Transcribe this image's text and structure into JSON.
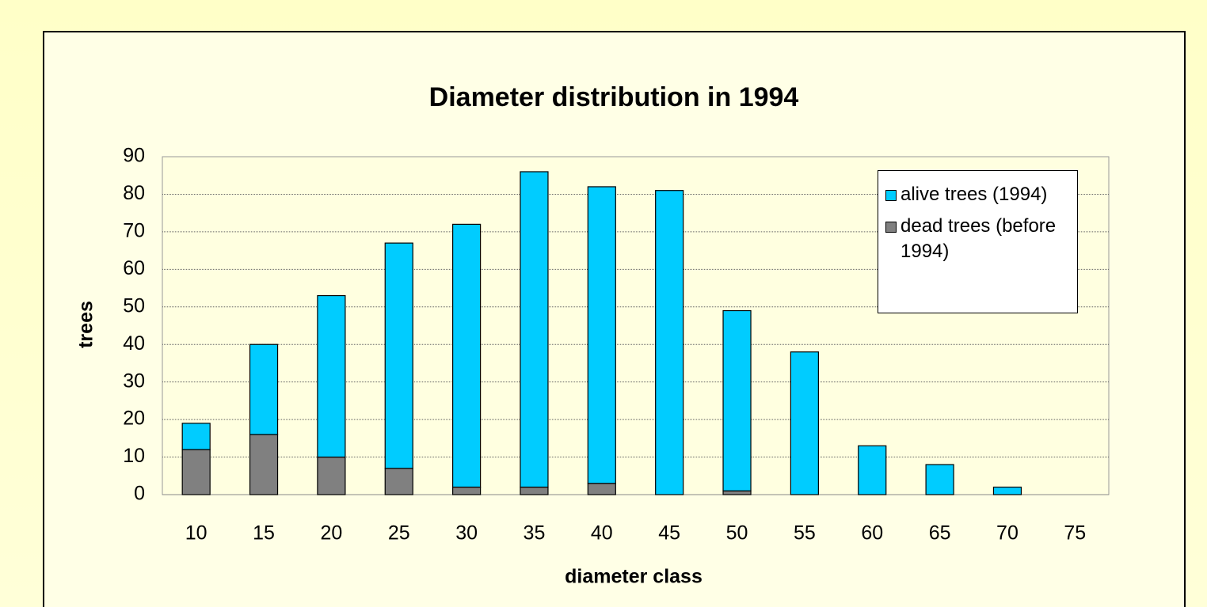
{
  "chart_data": {
    "type": "stacked_bar",
    "title": "Diameter distribution in 1994",
    "x_label": "diameter class",
    "y_label": "trees",
    "categories": [
      "10",
      "15",
      "20",
      "25",
      "30",
      "35",
      "40",
      "45",
      "50",
      "55",
      "60",
      "65",
      "70",
      "75"
    ],
    "series": [
      {
        "name": "alive trees (1994)",
        "color": "#00ccff",
        "values": [
          7,
          24,
          43,
          60,
          70,
          84,
          79,
          81,
          48,
          38,
          13,
          8,
          2,
          0
        ]
      },
      {
        "name": "dead trees (before 1994)",
        "color": "#808080",
        "values": [
          12,
          16,
          10,
          7,
          2,
          2,
          3,
          0,
          1,
          0,
          0,
          0,
          0,
          0
        ]
      }
    ],
    "ylim": [
      0,
      90
    ],
    "yticks": [
      0,
      10,
      20,
      30,
      40,
      50,
      60,
      70,
      80,
      90
    ],
    "grid": true,
    "legend": "upper right"
  }
}
